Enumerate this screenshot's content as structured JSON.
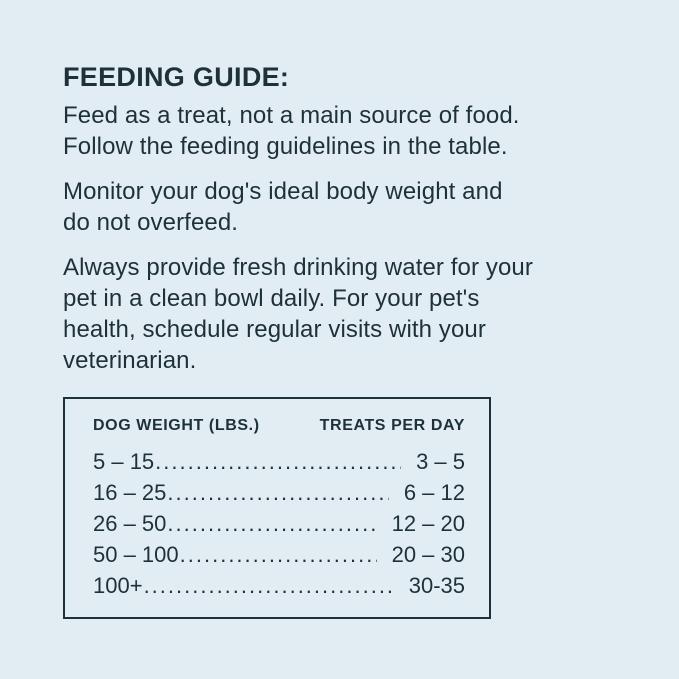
{
  "page": {
    "background_color": "#e1edf3",
    "text_color": "#1e3138"
  },
  "heading": "FEEDING GUIDE:",
  "paragraphs": [
    {
      "lines": [
        "Feed as a treat, not a main source of food.",
        "Follow the feeding guidelines in the table."
      ]
    },
    {
      "lines": [
        "Monitor your dog's ideal body weight and",
        "do not overfeed."
      ]
    },
    {
      "lines": [
        "Always provide fresh drinking water for your",
        "pet in a clean bowl daily. For your pet's",
        "health, schedule regular visits with your",
        "veterinarian."
      ]
    }
  ],
  "table": {
    "headers": {
      "weight": "DOG WEIGHT (LBS.)",
      "treats": "TREATS PER DAY"
    },
    "rows": [
      {
        "weight": "5 – 15",
        "leader": "................................................",
        "treats": "3 – 5"
      },
      {
        "weight": "16 – 25",
        "leader": "................................................",
        "treats": "6 – 12"
      },
      {
        "weight": "26 – 50",
        "leader": "................................................",
        "treats": "12 – 20"
      },
      {
        "weight": "50 – 100",
        "leader": "................................................",
        "treats": "20 – 30"
      },
      {
        "weight": "100+",
        "leader": "................................................",
        "treats": "30-35"
      }
    ]
  }
}
